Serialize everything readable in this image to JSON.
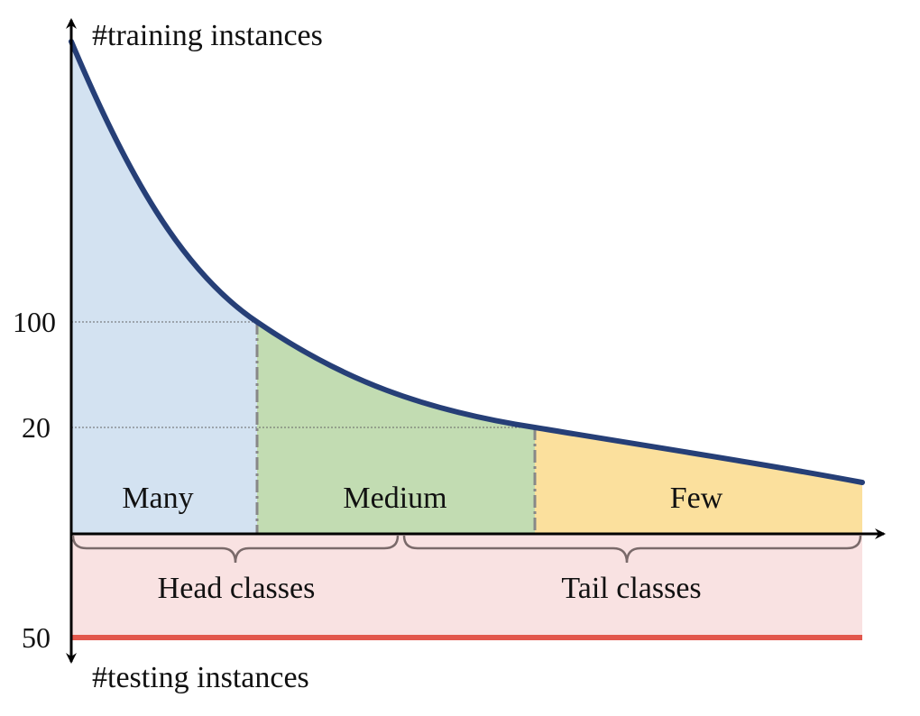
{
  "axes": {
    "y_top_label": "#training instances",
    "y_bottom_label": "#testing instances"
  },
  "ticks": {
    "t100": "100",
    "t20": "20",
    "t50": "50"
  },
  "regions": {
    "many": "Many",
    "medium": "Medium",
    "few": "Few"
  },
  "groups": {
    "head": "Head classes",
    "tail": "Tail classes"
  },
  "colors": {
    "many_fill": "#d3e2f1",
    "medium_fill": "#c2dcb2",
    "few_fill": "#fbe09d",
    "testing_fill": "#f9e2e2",
    "curve": "#263f77",
    "testing_line": "#e2574c"
  }
}
